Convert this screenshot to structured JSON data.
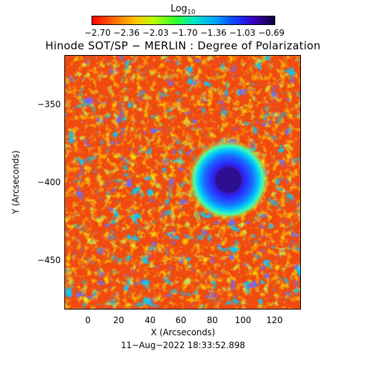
{
  "colorbar": {
    "label_main": "Log",
    "label_sub": "10",
    "ticks": [
      "−2.70",
      "−2.36",
      "−2.03",
      "−1.70",
      "−1.36",
      "−1.03",
      "−0.69"
    ]
  },
  "title": "Hinode SOT/SP − MERLIN : Degree of Polarization",
  "x_axis": {
    "label": "X (Arcseconds)",
    "range": [
      -15,
      137
    ],
    "ticks": [
      "0",
      "20",
      "40",
      "60",
      "80",
      "100",
      "120"
    ]
  },
  "y_axis": {
    "label": "Y (Arcseconds)",
    "range": [
      -482,
      -318
    ],
    "ticks": [
      "−350",
      "−400",
      "−450"
    ]
  },
  "timestamp": "11−Aug−2022 18:33:52.898",
  "sunspot": {
    "x": 90,
    "y": -398
  }
}
